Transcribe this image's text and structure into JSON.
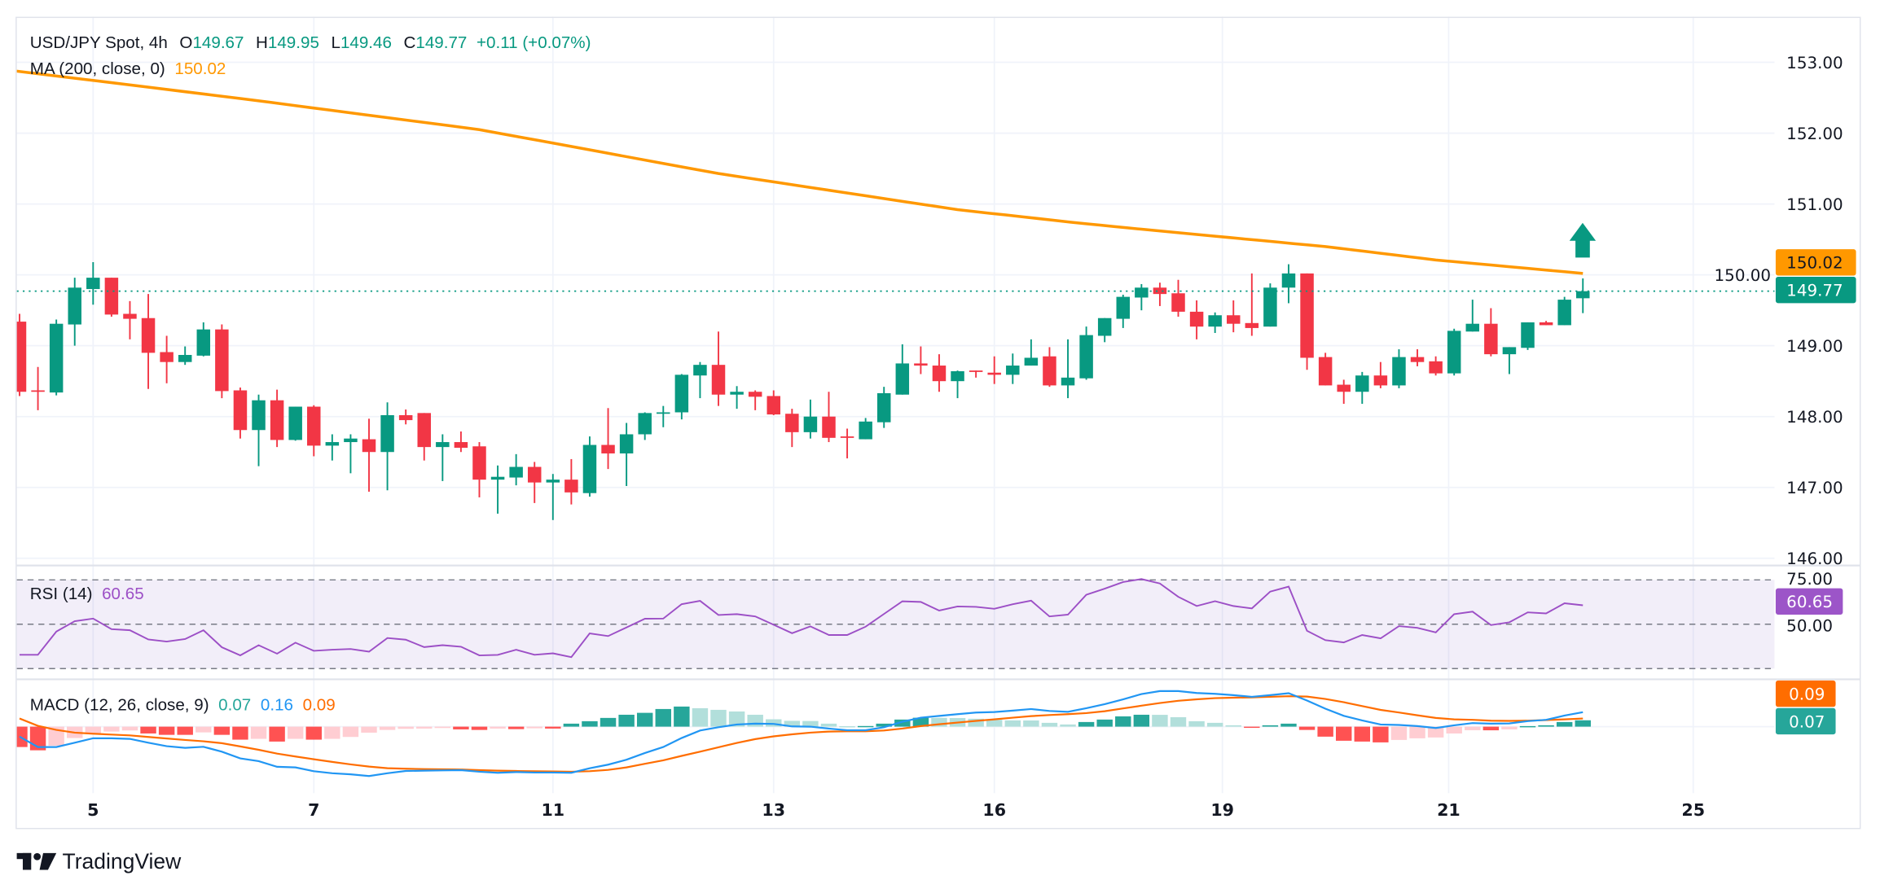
{
  "header": {
    "symbol": "USD/JPY Spot, 4h",
    "o_label": "O",
    "o_value": "149.67",
    "h_label": "H",
    "h_value": "149.95",
    "l_label": "L",
    "l_value": "149.46",
    "c_label": "C",
    "c_value": "149.77",
    "change": "+0.11 (+0.07%)"
  },
  "ma_legend": {
    "label": "MA (200, close, 0)",
    "value": "150.02"
  },
  "rsi_legend": {
    "label": "RSI (14)",
    "value": "60.65"
  },
  "macd_legend": {
    "label": "MACD (12, 26, close, 9)",
    "hist_value": "0.07",
    "macd_value": "0.16",
    "signal_value": "0.09"
  },
  "price_pills": {
    "ma": "150.02",
    "last": "149.77",
    "rsi": "60.65",
    "rsi_axis": "50.00",
    "rsi_axis_top": "75.00",
    "macd_signal": "0.09",
    "macd_hist": "0.07"
  },
  "brand": {
    "name": "TradingView"
  },
  "colors": {
    "up": "#089981",
    "down": "#f23645",
    "ma": "#ff9800",
    "rsi": "#9c4fc6",
    "macd": "#2196f3",
    "signal": "#ff6d00",
    "hist_up_grow": "#26a69a",
    "hist_up_fall": "#b2dfdb",
    "hist_down_fall": "#ff5252",
    "hist_down_rise": "#ffcdd2"
  },
  "chart_data": {
    "type": "candlestick",
    "title": "USD/JPY Spot, 4h",
    "price_ticks": [
      "146.00",
      "147.00",
      "148.00",
      "149.00",
      "150.00",
      "151.00",
      "152.00",
      "153.00"
    ],
    "ylim": [
      146,
      153
    ],
    "last_price": 149.77,
    "x_ticks": [
      {
        "label": "5",
        "bar": 4
      },
      {
        "label": "7",
        "bar": 16
      },
      {
        "label": "11",
        "bar": 29
      },
      {
        "label": "13",
        "bar": 41
      },
      {
        "label": "16",
        "bar": 53
      },
      {
        "label": "19",
        "bar": 65.4
      },
      {
        "label": "21",
        "bar": 77.7
      },
      {
        "label": "25",
        "bar": 91
      }
    ],
    "ohlc": [
      [
        149.34,
        149.45,
        148.29,
        148.35
      ],
      [
        148.37,
        148.7,
        148.09,
        148.35
      ],
      [
        148.34,
        149.37,
        148.3,
        149.31
      ],
      [
        149.3,
        149.96,
        149.0,
        149.82
      ],
      [
        149.8,
        150.18,
        149.58,
        149.96
      ],
      [
        149.96,
        149.96,
        149.41,
        149.44
      ],
      [
        149.45,
        149.63,
        149.09,
        149.38
      ],
      [
        149.39,
        149.73,
        148.39,
        148.9
      ],
      [
        148.91,
        149.14,
        148.47,
        148.77
      ],
      [
        148.77,
        148.99,
        148.73,
        148.87
      ],
      [
        148.86,
        149.33,
        148.85,
        149.23
      ],
      [
        149.23,
        149.3,
        148.26,
        148.36
      ],
      [
        148.37,
        148.41,
        147.69,
        147.81
      ],
      [
        147.81,
        148.31,
        147.3,
        148.23
      ],
      [
        148.23,
        148.38,
        147.57,
        147.67
      ],
      [
        147.67,
        148.14,
        147.66,
        148.14
      ],
      [
        148.14,
        148.16,
        147.44,
        147.59
      ],
      [
        147.59,
        147.75,
        147.38,
        147.64
      ],
      [
        147.64,
        147.75,
        147.2,
        147.69
      ],
      [
        147.68,
        147.97,
        146.94,
        147.5
      ],
      [
        147.5,
        148.2,
        146.96,
        148.02
      ],
      [
        148.02,
        148.1,
        147.89,
        147.95
      ],
      [
        148.05,
        148.05,
        147.38,
        147.57
      ],
      [
        147.57,
        147.75,
        147.09,
        147.64
      ],
      [
        147.64,
        147.79,
        147.5,
        147.56
      ],
      [
        147.58,
        147.64,
        146.86,
        147.11
      ],
      [
        147.11,
        147.31,
        146.63,
        147.15
      ],
      [
        147.14,
        147.47,
        147.03,
        147.29
      ],
      [
        147.29,
        147.36,
        146.78,
        147.07
      ],
      [
        147.07,
        147.19,
        146.54,
        147.11
      ],
      [
        147.11,
        147.4,
        146.76,
        146.93
      ],
      [
        146.92,
        147.72,
        146.87,
        147.6
      ],
      [
        147.6,
        148.12,
        147.26,
        147.48
      ],
      [
        147.48,
        147.91,
        147.02,
        147.75
      ],
      [
        147.75,
        148.06,
        147.67,
        148.05
      ],
      [
        148.05,
        148.15,
        147.85,
        148.06
      ],
      [
        148.06,
        148.6,
        147.96,
        148.59
      ],
      [
        148.58,
        148.77,
        148.26,
        148.73
      ],
      [
        148.73,
        149.2,
        148.15,
        148.31
      ],
      [
        148.31,
        148.43,
        148.11,
        148.35
      ],
      [
        148.35,
        148.37,
        148.09,
        148.28
      ],
      [
        148.29,
        148.37,
        148.02,
        148.03
      ],
      [
        148.04,
        148.11,
        147.57,
        147.78
      ],
      [
        147.78,
        148.24,
        147.69,
        148.0
      ],
      [
        148.0,
        148.35,
        147.64,
        147.7
      ],
      [
        147.72,
        147.83,
        147.41,
        147.7
      ],
      [
        147.68,
        147.98,
        147.68,
        147.93
      ],
      [
        147.92,
        148.42,
        147.84,
        148.33
      ],
      [
        148.31,
        149.02,
        148.31,
        148.75
      ],
      [
        148.75,
        148.99,
        148.6,
        148.72
      ],
      [
        148.72,
        148.88,
        148.35,
        148.5
      ],
      [
        148.5,
        148.65,
        148.26,
        148.64
      ],
      [
        148.65,
        148.65,
        148.55,
        148.63
      ],
      [
        148.62,
        148.85,
        148.46,
        148.59
      ],
      [
        148.59,
        148.89,
        148.46,
        148.72
      ],
      [
        148.72,
        149.09,
        148.72,
        148.83
      ],
      [
        148.85,
        148.98,
        148.42,
        148.44
      ],
      [
        148.44,
        149.09,
        148.26,
        148.55
      ],
      [
        148.54,
        149.27,
        148.52,
        149.15
      ],
      [
        149.14,
        149.39,
        149.05,
        149.39
      ],
      [
        149.38,
        149.72,
        149.25,
        149.69
      ],
      [
        149.68,
        149.87,
        149.5,
        149.82
      ],
      [
        149.82,
        149.89,
        149.56,
        149.73
      ],
      [
        149.74,
        149.93,
        149.41,
        149.48
      ],
      [
        149.48,
        149.64,
        149.09,
        149.27
      ],
      [
        149.27,
        149.47,
        149.18,
        149.43
      ],
      [
        149.43,
        149.64,
        149.19,
        149.31
      ],
      [
        149.32,
        150.02,
        149.14,
        149.25
      ],
      [
        149.27,
        149.88,
        149.27,
        149.82
      ],
      [
        149.82,
        150.15,
        149.6,
        150.02
      ],
      [
        150.02,
        150.02,
        148.66,
        148.83
      ],
      [
        148.84,
        148.9,
        148.44,
        148.44
      ],
      [
        148.45,
        148.52,
        148.18,
        148.35
      ],
      [
        148.35,
        148.63,
        148.18,
        148.58
      ],
      [
        148.58,
        148.77,
        148.4,
        148.44
      ],
      [
        148.44,
        148.95,
        148.4,
        148.84
      ],
      [
        148.84,
        148.95,
        148.71,
        148.77
      ],
      [
        148.78,
        148.85,
        148.58,
        148.61
      ],
      [
        148.61,
        149.24,
        148.58,
        149.21
      ],
      [
        149.2,
        149.65,
        149.2,
        149.31
      ],
      [
        149.31,
        149.53,
        148.85,
        148.88
      ],
      [
        148.88,
        148.98,
        148.6,
        148.98
      ],
      [
        148.97,
        149.33,
        148.94,
        149.33
      ],
      [
        149.33,
        149.35,
        149.29,
        149.29
      ],
      [
        149.29,
        149.69,
        149.29,
        149.65
      ],
      [
        149.67,
        149.95,
        149.46,
        149.77
      ]
    ],
    "ma200": [
      [
        -0.3,
        152.88
      ],
      [
        12,
        152.49
      ],
      [
        25,
        152.05
      ],
      [
        38,
        151.43
      ],
      [
        51,
        150.92
      ],
      [
        58,
        150.72
      ],
      [
        64,
        150.57
      ],
      [
        71,
        150.4
      ],
      [
        77,
        150.21
      ],
      [
        85,
        150.02
      ]
    ],
    "rsi": {
      "ylim": [
        25,
        75
      ],
      "bands": [
        25,
        50,
        75
      ],
      "values": [
        32.8,
        32.8,
        45.9,
        51.7,
        53.2,
        47.2,
        46.6,
        41.4,
        40.2,
        41.6,
        46.6,
        37.0,
        32.4,
        38.2,
        33.4,
        39.6,
        35.0,
        35.6,
        36.0,
        34.5,
        42.2,
        41.3,
        37.1,
        38.2,
        37.3,
        32.4,
        32.7,
        35.6,
        32.8,
        33.6,
        31.4,
        44.8,
        43.3,
        48.2,
        53.1,
        53.2,
        61.3,
        63.2,
        55.2,
        55.7,
        54.4,
        49.7,
        44.9,
        48.8,
        43.9,
        43.9,
        48.6,
        55.8,
        62.9,
        62.6,
        57.7,
        60.0,
        59.8,
        58.7,
        61.3,
        63.3,
        54.4,
        55.4,
        66.6,
        70.1,
        73.8,
        75.5,
        73.0,
        65.5,
        60.3,
        63.0,
        60.3,
        58.9,
        68.4,
        71.2,
        46.3,
        41.0,
        39.7,
        43.9,
        42.0,
        48.9,
        48.0,
        45.4,
        55.7,
        57.1,
        49.5,
        51.1,
        56.7,
        56.1,
        61.8,
        60.65
      ]
    },
    "macd": {
      "macd": [
        -0.11,
        -0.224,
        -0.224,
        -0.176,
        -0.128,
        -0.128,
        -0.134,
        -0.176,
        -0.215,
        -0.233,
        -0.221,
        -0.275,
        -0.349,
        -0.379,
        -0.442,
        -0.448,
        -0.49,
        -0.513,
        -0.525,
        -0.543,
        -0.513,
        -0.487,
        -0.484,
        -0.481,
        -0.478,
        -0.496,
        -0.507,
        -0.499,
        -0.504,
        -0.504,
        -0.507,
        -0.457,
        -0.418,
        -0.364,
        -0.29,
        -0.224,
        -0.125,
        -0.042,
        -0.006,
        0.024,
        0.033,
        0.03,
        0.003,
        0.0,
        -0.021,
        -0.039,
        -0.039,
        -0.006,
        0.054,
        0.099,
        0.119,
        0.137,
        0.155,
        0.161,
        0.176,
        0.194,
        0.173,
        0.164,
        0.203,
        0.248,
        0.301,
        0.358,
        0.391,
        0.391,
        0.37,
        0.361,
        0.346,
        0.328,
        0.346,
        0.367,
        0.287,
        0.197,
        0.119,
        0.069,
        0.024,
        0.018,
        0.006,
        -0.015,
        0.015,
        0.039,
        0.033,
        0.036,
        0.06,
        0.075,
        0.122,
        0.16
      ],
      "signal": [
        0.09,
        0.009,
        -0.036,
        -0.066,
        -0.078,
        -0.087,
        -0.096,
        -0.113,
        -0.131,
        -0.146,
        -0.161,
        -0.182,
        -0.218,
        -0.254,
        -0.296,
        -0.328,
        -0.358,
        -0.388,
        -0.415,
        -0.439,
        -0.457,
        -0.463,
        -0.466,
        -0.469,
        -0.472,
        -0.478,
        -0.484,
        -0.487,
        -0.49,
        -0.493,
        -0.496,
        -0.49,
        -0.475,
        -0.448,
        -0.409,
        -0.37,
        -0.322,
        -0.275,
        -0.227,
        -0.179,
        -0.137,
        -0.107,
        -0.084,
        -0.066,
        -0.054,
        -0.051,
        -0.051,
        -0.042,
        -0.021,
        0.006,
        0.027,
        0.045,
        0.063,
        0.081,
        0.099,
        0.116,
        0.128,
        0.137,
        0.149,
        0.17,
        0.2,
        0.23,
        0.26,
        0.284,
        0.301,
        0.313,
        0.319,
        0.322,
        0.328,
        0.334,
        0.331,
        0.304,
        0.269,
        0.227,
        0.185,
        0.155,
        0.125,
        0.096,
        0.081,
        0.075,
        0.066,
        0.063,
        0.066,
        0.072,
        0.081,
        0.09
      ],
      "histogram": [
        -0.224,
        -0.26,
        -0.209,
        -0.125,
        -0.075,
        -0.054,
        -0.042,
        -0.075,
        -0.09,
        -0.09,
        -0.063,
        -0.09,
        -0.143,
        -0.134,
        -0.164,
        -0.134,
        -0.143,
        -0.134,
        -0.113,
        -0.066,
        -0.036,
        -0.024,
        -0.021,
        -0.015,
        -0.03,
        -0.036,
        -0.021,
        -0.027,
        -0.018,
        -0.021,
        0.033,
        0.06,
        0.096,
        0.131,
        0.152,
        0.194,
        0.221,
        0.203,
        0.185,
        0.167,
        0.131,
        0.081,
        0.064,
        0.062,
        0.033,
        0.005,
        0.007,
        0.033,
        0.078,
        0.098,
        0.097,
        0.095,
        0.087,
        0.075,
        0.069,
        0.068,
        0.042,
        0.024,
        0.051,
        0.078,
        0.113,
        0.131,
        0.13,
        0.104,
        0.06,
        0.042,
        0.015,
        -0.009,
        0.015,
        0.033,
        -0.036,
        -0.11,
        -0.155,
        -0.164,
        -0.173,
        -0.146,
        -0.128,
        -0.119,
        -0.075,
        -0.039,
        -0.04,
        -0.03,
        0.006,
        0.015,
        0.051,
        0.07
      ]
    },
    "annotation": "up-arrow"
  }
}
